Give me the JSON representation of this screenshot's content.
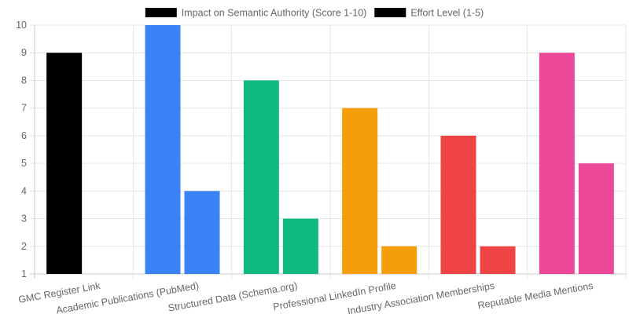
{
  "chart_data": {
    "type": "bar",
    "categories": [
      "GMC Register Link",
      "Academic Publications (PubMed)",
      "Structured Data (Schema.org)",
      "Professional LinkedIn Profile",
      "Industry Association Memberships",
      "Reputable Media Mentions"
    ],
    "series": [
      {
        "name": "Impact on Semantic Authority (Score 1-10)",
        "values": [
          9,
          10,
          8,
          7,
          6,
          9
        ]
      },
      {
        "name": "Effort Level (1-5)",
        "values": [
          null,
          4,
          3,
          2,
          2,
          5
        ]
      }
    ],
    "bar_colors": [
      "#000000",
      "#3b82f6",
      "#10b981",
      "#f59e0b",
      "#ef4444",
      "#ec4899"
    ],
    "legend_swatch_color": "#000000",
    "ylim": [
      1,
      10
    ],
    "yticks": [
      1,
      2,
      3,
      4,
      5,
      6,
      7,
      8,
      9,
      10
    ],
    "grid": true,
    "legend_position": "top-center",
    "title": "",
    "xlabel": "",
    "ylabel": ""
  }
}
